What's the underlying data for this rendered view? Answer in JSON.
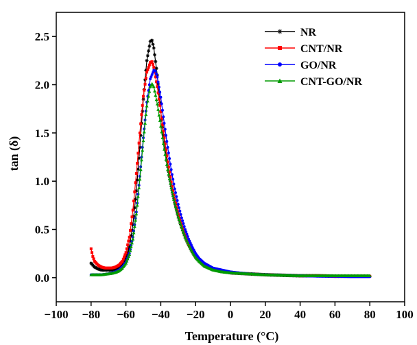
{
  "chart_data": {
    "type": "line",
    "title": "",
    "xlabel": "Temperature (°C)",
    "ylabel": "tan (δ)",
    "xlim": [
      -100,
      100
    ],
    "ylim": [
      -0.25,
      2.75
    ],
    "x_ticks": [
      "−100",
      "−80",
      "−60",
      "−40",
      "−20",
      "0",
      "20",
      "40",
      "60",
      "80",
      "100"
    ],
    "y_ticks": [
      "0.0",
      "0.5",
      "1.0",
      "1.5",
      "2.0",
      "2.5"
    ],
    "grid": false,
    "legend_position": "top-right",
    "series": [
      {
        "name": "NR",
        "color": "#000000",
        "marker": "star",
        "points": [
          [
            -80,
            0.15
          ],
          [
            -78,
            0.11
          ],
          [
            -76,
            0.09
          ],
          [
            -74,
            0.08
          ],
          [
            -72,
            0.08
          ],
          [
            -70,
            0.08
          ],
          [
            -68,
            0.08
          ],
          [
            -66,
            0.09
          ],
          [
            -64,
            0.1
          ],
          [
            -62,
            0.13
          ],
          [
            -60,
            0.2
          ],
          [
            -58,
            0.32
          ],
          [
            -56,
            0.55
          ],
          [
            -54,
            0.9
          ],
          [
            -52,
            1.35
          ],
          [
            -50,
            1.85
          ],
          [
            -48,
            2.25
          ],
          [
            -46,
            2.45
          ],
          [
            -45,
            2.46
          ],
          [
            -44,
            2.38
          ],
          [
            -42,
            2.1
          ],
          [
            -40,
            1.72
          ],
          [
            -38,
            1.4
          ],
          [
            -36,
            1.15
          ],
          [
            -34,
            0.95
          ],
          [
            -32,
            0.78
          ],
          [
            -30,
            0.64
          ],
          [
            -28,
            0.52
          ],
          [
            -26,
            0.42
          ],
          [
            -24,
            0.34
          ],
          [
            -22,
            0.27
          ],
          [
            -20,
            0.21
          ],
          [
            -18,
            0.17
          ],
          [
            -15,
            0.13
          ],
          [
            -10,
            0.09
          ],
          [
            -5,
            0.07
          ],
          [
            0,
            0.05
          ],
          [
            10,
            0.04
          ],
          [
            20,
            0.03
          ],
          [
            30,
            0.025
          ],
          [
            40,
            0.02
          ],
          [
            50,
            0.02
          ],
          [
            60,
            0.015
          ],
          [
            70,
            0.015
          ],
          [
            80,
            0.015
          ]
        ]
      },
      {
        "name": "CNT/NR",
        "color": "#ff0000",
        "marker": "square",
        "points": [
          [
            -80,
            0.3
          ],
          [
            -79,
            0.22
          ],
          [
            -78,
            0.17
          ],
          [
            -76,
            0.13
          ],
          [
            -74,
            0.11
          ],
          [
            -72,
            0.1
          ],
          [
            -70,
            0.1
          ],
          [
            -68,
            0.1
          ],
          [
            -66,
            0.11
          ],
          [
            -64,
            0.13
          ],
          [
            -62,
            0.17
          ],
          [
            -60,
            0.26
          ],
          [
            -58,
            0.42
          ],
          [
            -56,
            0.7
          ],
          [
            -54,
            1.08
          ],
          [
            -52,
            1.5
          ],
          [
            -50,
            1.88
          ],
          [
            -48,
            2.13
          ],
          [
            -46,
            2.23
          ],
          [
            -45,
            2.24
          ],
          [
            -44,
            2.18
          ],
          [
            -42,
            1.98
          ],
          [
            -40,
            1.72
          ],
          [
            -38,
            1.45
          ],
          [
            -36,
            1.2
          ],
          [
            -34,
            0.99
          ],
          [
            -32,
            0.81
          ],
          [
            -30,
            0.66
          ],
          [
            -28,
            0.54
          ],
          [
            -26,
            0.44
          ],
          [
            -24,
            0.35
          ],
          [
            -22,
            0.28
          ],
          [
            -20,
            0.22
          ],
          [
            -18,
            0.18
          ],
          [
            -15,
            0.13
          ],
          [
            -10,
            0.09
          ],
          [
            -5,
            0.07
          ],
          [
            0,
            0.05
          ],
          [
            10,
            0.04
          ],
          [
            20,
            0.03
          ],
          [
            30,
            0.025
          ],
          [
            40,
            0.02
          ],
          [
            50,
            0.02
          ],
          [
            60,
            0.015
          ],
          [
            70,
            0.015
          ],
          [
            80,
            0.015
          ]
        ]
      },
      {
        "name": "GO/NR",
        "color": "#0000ff",
        "marker": "circle",
        "points": [
          [
            -80,
            0.03
          ],
          [
            -78,
            0.03
          ],
          [
            -76,
            0.03
          ],
          [
            -74,
            0.03
          ],
          [
            -72,
            0.035
          ],
          [
            -70,
            0.04
          ],
          [
            -68,
            0.05
          ],
          [
            -66,
            0.06
          ],
          [
            -64,
            0.08
          ],
          [
            -62,
            0.11
          ],
          [
            -60,
            0.16
          ],
          [
            -58,
            0.25
          ],
          [
            -56,
            0.42
          ],
          [
            -54,
            0.68
          ],
          [
            -52,
            1.05
          ],
          [
            -50,
            1.45
          ],
          [
            -48,
            1.82
          ],
          [
            -46,
            2.06
          ],
          [
            -44,
            2.15
          ],
          [
            -43,
            2.14
          ],
          [
            -42,
            2.08
          ],
          [
            -40,
            1.87
          ],
          [
            -38,
            1.6
          ],
          [
            -36,
            1.35
          ],
          [
            -34,
            1.12
          ],
          [
            -32,
            0.92
          ],
          [
            -30,
            0.76
          ],
          [
            -28,
            0.62
          ],
          [
            -26,
            0.5
          ],
          [
            -24,
            0.4
          ],
          [
            -22,
            0.32
          ],
          [
            -20,
            0.25
          ],
          [
            -18,
            0.2
          ],
          [
            -15,
            0.15
          ],
          [
            -10,
            0.1
          ],
          [
            -5,
            0.08
          ],
          [
            0,
            0.06
          ],
          [
            10,
            0.04
          ],
          [
            20,
            0.03
          ],
          [
            30,
            0.025
          ],
          [
            40,
            0.02
          ],
          [
            50,
            0.015
          ],
          [
            60,
            0.015
          ],
          [
            70,
            0.01
          ],
          [
            80,
            0.01
          ]
        ]
      },
      {
        "name": "CNT-GO/NR",
        "color": "#009a00",
        "marker": "triangle",
        "points": [
          [
            -80,
            0.03
          ],
          [
            -78,
            0.03
          ],
          [
            -76,
            0.03
          ],
          [
            -74,
            0.03
          ],
          [
            -72,
            0.035
          ],
          [
            -70,
            0.04
          ],
          [
            -68,
            0.045
          ],
          [
            -66,
            0.055
          ],
          [
            -64,
            0.07
          ],
          [
            -62,
            0.1
          ],
          [
            -60,
            0.15
          ],
          [
            -58,
            0.24
          ],
          [
            -56,
            0.4
          ],
          [
            -54,
            0.66
          ],
          [
            -52,
            1.02
          ],
          [
            -50,
            1.42
          ],
          [
            -48,
            1.78
          ],
          [
            -46,
            1.98
          ],
          [
            -45,
            2.01
          ],
          [
            -44,
            1.98
          ],
          [
            -42,
            1.8
          ],
          [
            -40,
            1.57
          ],
          [
            -38,
            1.33
          ],
          [
            -36,
            1.12
          ],
          [
            -34,
            0.93
          ],
          [
            -32,
            0.77
          ],
          [
            -30,
            0.63
          ],
          [
            -28,
            0.52
          ],
          [
            -26,
            0.42
          ],
          [
            -24,
            0.34
          ],
          [
            -22,
            0.27
          ],
          [
            -20,
            0.21
          ],
          [
            -18,
            0.17
          ],
          [
            -15,
            0.12
          ],
          [
            -10,
            0.08
          ],
          [
            -5,
            0.06
          ],
          [
            0,
            0.05
          ],
          [
            10,
            0.04
          ],
          [
            20,
            0.03
          ],
          [
            30,
            0.025
          ],
          [
            40,
            0.02
          ],
          [
            50,
            0.02
          ],
          [
            60,
            0.02
          ],
          [
            70,
            0.02
          ],
          [
            80,
            0.02
          ]
        ]
      }
    ]
  }
}
